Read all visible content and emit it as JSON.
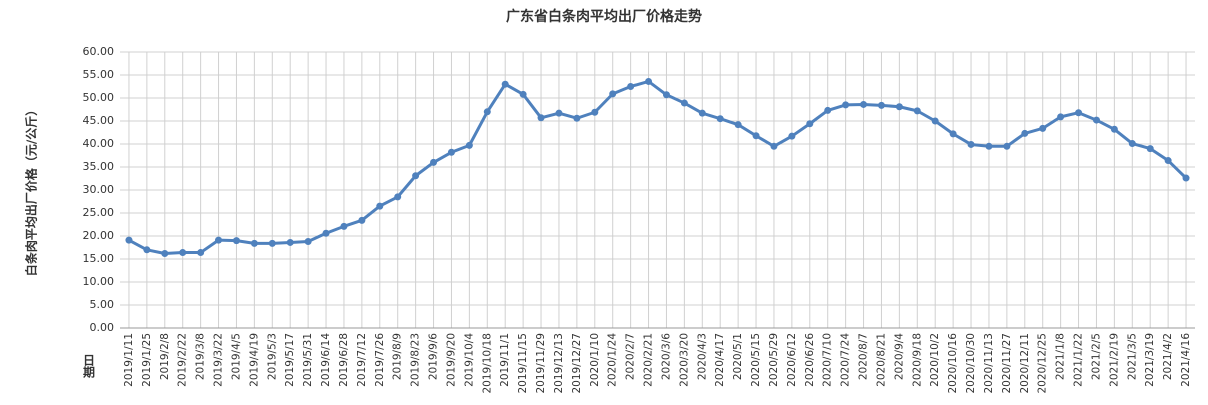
{
  "chart_data": {
    "type": "line",
    "title": "广东省白条肉平均出厂价格走势",
    "y_label": "白条肉平均出厂价格（元/公斤）",
    "x_label": "日期",
    "categories": [
      "2019/1/11",
      "2019/1/25",
      "2019/2/8",
      "2019/2/22",
      "2019/3/8",
      "2019/3/22",
      "2019/4/5",
      "2019/4/19",
      "2019/5/3",
      "2019/5/17",
      "2019/5/31",
      "2019/6/14",
      "2019/6/28",
      "2019/7/12",
      "2019/7/26",
      "2019/8/9",
      "2019/8/23",
      "2019/9/6",
      "2019/9/20",
      "2019/10/4",
      "2019/10/18",
      "2019/11/1",
      "2019/11/15",
      "2019/11/29",
      "2019/12/13",
      "2019/12/27",
      "2020/1/10",
      "2020/1/24",
      "2020/2/7",
      "2020/2/21",
      "2020/3/6",
      "2020/3/20",
      "2020/4/3",
      "2020/4/17",
      "2020/5/1",
      "2020/5/15",
      "2020/5/29",
      "2020/6/12",
      "2020/6/26",
      "2020/7/10",
      "2020/7/24",
      "2020/8/7",
      "2020/8/21",
      "2020/9/4",
      "2020/9/18",
      "2020/10/2",
      "2020/10/16",
      "2020/10/30",
      "2020/11/13",
      "2020/11/27",
      "2020/12/11",
      "2020/12/25",
      "2021/1/8",
      "2021/1/22",
      "2021/2/5",
      "2021/2/19",
      "2021/3/5",
      "2021/3/19",
      "2021/4/2",
      "2021/4/16"
    ],
    "values": [
      19.1,
      17.0,
      16.2,
      16.4,
      16.4,
      19.1,
      19.0,
      18.4,
      18.4,
      18.6,
      18.8,
      20.6,
      22.1,
      23.4,
      26.5,
      28.5,
      33.1,
      36.0,
      38.2,
      39.7,
      47.0,
      53.0,
      50.8,
      45.7,
      46.7,
      45.6,
      46.9,
      50.9,
      52.5,
      53.6,
      50.7,
      48.9,
      46.7,
      45.5,
      44.2,
      41.8,
      39.5,
      41.7,
      44.4,
      47.3,
      48.5,
      48.6,
      48.4,
      48.1,
      47.2,
      45.0,
      42.2,
      39.9,
      39.5,
      39.5,
      42.3,
      43.4,
      45.9,
      46.8,
      45.2,
      43.2,
      40.1,
      39.0,
      36.4,
      32.6
    ],
    "color": "#4f81bd",
    "ylim": [
      0,
      60
    ],
    "yticks": [
      {
        "value": 0,
        "label": "0.00"
      },
      {
        "value": 5,
        "label": "5.00"
      },
      {
        "value": 10,
        "label": "10.00"
      },
      {
        "value": 15,
        "label": "15.00"
      },
      {
        "value": 20,
        "label": "20.00"
      },
      {
        "value": 25,
        "label": "25.00"
      },
      {
        "value": 30,
        "label": "30.00"
      },
      {
        "value": 35,
        "label": "35.00"
      },
      {
        "value": 40,
        "label": "40.00"
      },
      {
        "value": 45,
        "label": "45.00"
      },
      {
        "value": 50,
        "label": "50.00"
      },
      {
        "value": 55,
        "label": "55.00"
      },
      {
        "value": 60,
        "label": "60.00"
      }
    ],
    "grid": true
  }
}
